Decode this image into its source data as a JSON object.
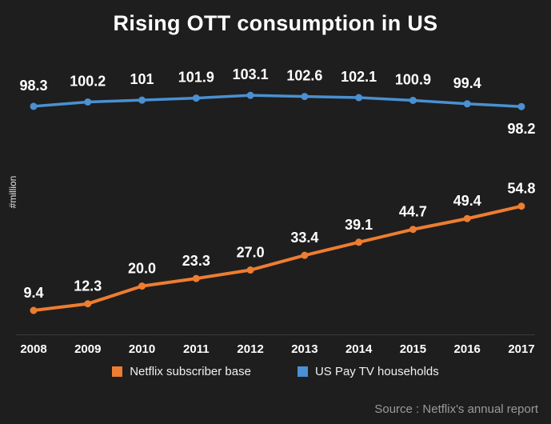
{
  "title": "Rising OTT consumption in US",
  "ylabel": "#million",
  "source": "Source : Netflix's annual report",
  "colors": {
    "background": "#1e1e1e",
    "netflix_orange": "#ed7d31",
    "paytv_blue": "#4a90d2",
    "label_text": "#ffffff",
    "muted_text": "#9a9a9a",
    "axis_line": "#3a3a3a"
  },
  "chart_data": {
    "type": "line",
    "categories": [
      "2008",
      "2009",
      "2010",
      "2011",
      "2012",
      "2013",
      "2014",
      "2015",
      "2016",
      "2017"
    ],
    "series": [
      {
        "name": "Netflix subscriber base",
        "color": "#ed7d31",
        "values": [
          9.4,
          12.3,
          20.0,
          23.3,
          27.0,
          33.4,
          39.1,
          44.7,
          49.4,
          54.8
        ],
        "labels": [
          "9.4",
          "12.3",
          "20.0",
          "23.3",
          "27.0",
          "33.4",
          "39.1",
          "44.7",
          "49.4",
          "54.8"
        ]
      },
      {
        "name": "US Pay TV households",
        "color": "#4a90d2",
        "values": [
          98.3,
          100.2,
          101,
          101.9,
          103.1,
          102.6,
          102.1,
          100.9,
          99.4,
          98.2
        ],
        "labels": [
          "98.3",
          "100.2",
          "101",
          "101.9",
          "103.1",
          "102.6",
          "102.1",
          "100.9",
          "99.4",
          "98.2"
        ]
      }
    ],
    "ylim": [
      0,
      115
    ],
    "grid": false,
    "legend_position": "bottom",
    "title": "Rising OTT consumption in US",
    "xlabel": "",
    "ylabel_axis": "#million"
  }
}
